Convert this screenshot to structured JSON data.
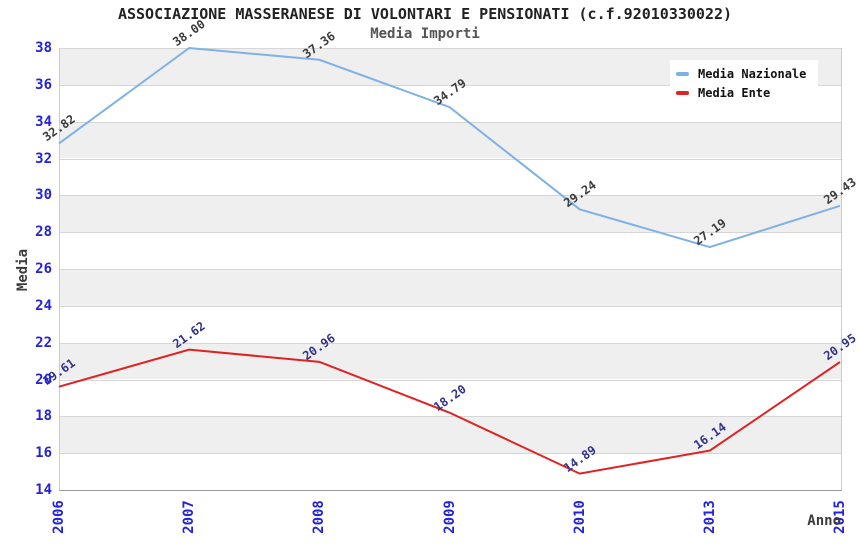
{
  "chart_data": {
    "type": "line",
    "title": "ASSOCIAZIONE MASSERANESE DI VOLONTARI E PENSIONATI (c.f.92010330022)",
    "subtitle": "Media Importi",
    "xlabel": "Anno",
    "ylabel": "Media",
    "categories": [
      "2006",
      "2007",
      "2008",
      "2009",
      "2010",
      "2013",
      "2015"
    ],
    "series": [
      {
        "name": "Media Nazionale",
        "color": "#7EB2E6",
        "label_color": "#3C3C3C",
        "values": [
          32.82,
          38.0,
          37.36,
          34.79,
          29.24,
          27.19,
          29.43
        ]
      },
      {
        "name": "Media Ente",
        "color": "#E02222",
        "label_color": "#32328C",
        "values": [
          19.61,
          21.62,
          20.96,
          18.2,
          14.89,
          16.14,
          20.95
        ]
      }
    ],
    "ylim": [
      14,
      38
    ],
    "ytick_step": 2,
    "grid": true,
    "band_colors": [
      "#EFEFEF",
      "#FFFFFF"
    ],
    "gridline_color": "#D6D6D6",
    "axis_tick_color": "#2323D7",
    "legend_position": "top-right"
  }
}
